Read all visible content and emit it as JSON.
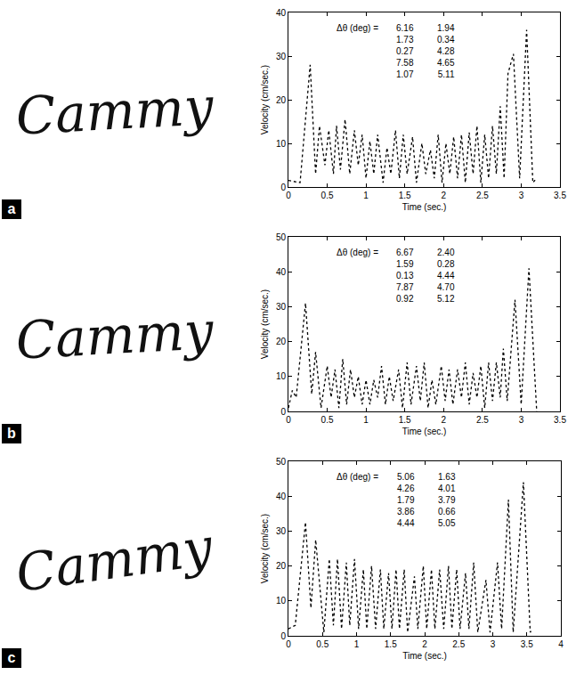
{
  "chart_data": [
    {
      "panel": "a",
      "signature": "Cammy",
      "type": "line",
      "color": "#000000",
      "line_style": "dot",
      "grid": false,
      "x_label": "Time (sec.)",
      "y_label": "Velocity (cm/sec.)",
      "xlim": [
        0,
        3.5
      ],
      "xticks": [
        0,
        0.5,
        1,
        1.5,
        2,
        2.5,
        3,
        3.5
      ],
      "ylim": [
        0,
        40
      ],
      "yticks": [
        0,
        10,
        20,
        30,
        40
      ],
      "annotation": {
        "label": "Δθ (deg) =",
        "rows": [
          [
            "6.16",
            "1.94"
          ],
          [
            "1.73",
            "0.34"
          ],
          [
            "0.27",
            "4.28"
          ],
          [
            "7.58",
            "4.65"
          ],
          [
            "1.07",
            "5.11"
          ]
        ]
      },
      "x": [
        0,
        0.15,
        0.28,
        0.35,
        0.4,
        0.47,
        0.52,
        0.58,
        0.62,
        0.67,
        0.73,
        0.79,
        0.85,
        0.9,
        0.95,
        1.0,
        1.05,
        1.1,
        1.15,
        1.22,
        1.27,
        1.32,
        1.38,
        1.43,
        1.48,
        1.53,
        1.6,
        1.65,
        1.72,
        1.77,
        1.83,
        1.88,
        1.93,
        1.98,
        2.03,
        2.08,
        2.13,
        2.18,
        2.23,
        2.28,
        2.33,
        2.38,
        2.43,
        2.48,
        2.53,
        2.58,
        2.63,
        2.68,
        2.73,
        2.78,
        2.83,
        2.9,
        2.98,
        3.07,
        3.15,
        3.2
      ],
      "values": [
        1.5,
        1,
        28,
        3,
        14,
        5,
        13,
        3,
        14,
        4,
        15.5,
        3,
        13,
        5,
        12,
        2,
        10.5,
        3,
        12,
        1,
        9,
        3,
        13,
        2,
        12,
        3,
        11.5,
        1,
        10,
        3,
        8.5,
        2,
        12,
        1,
        10,
        3,
        11.5,
        2,
        12,
        1,
        12.5,
        3,
        14,
        1,
        12,
        2,
        14,
        3,
        18.5,
        2,
        26,
        30.5,
        2,
        36,
        1,
        2
      ]
    },
    {
      "panel": "b",
      "signature": "Cammy",
      "type": "line",
      "color": "#000000",
      "line_style": "dot",
      "grid": false,
      "x_label": "Time (sec.)",
      "y_label": "Velocity (cm/sec.)",
      "xlim": [
        0,
        3.5
      ],
      "xticks": [
        0,
        0.5,
        1,
        1.5,
        2,
        2.5,
        3,
        3.5
      ],
      "ylim": [
        0,
        50
      ],
      "yticks": [
        0,
        10,
        20,
        30,
        40,
        50
      ],
      "annotation": {
        "label": "Δθ (deg) =",
        "rows": [
          [
            "6.67",
            "2.40"
          ],
          [
            "1.59",
            "0.28"
          ],
          [
            "0.13",
            "4.44"
          ],
          [
            "7.87",
            "4.70"
          ],
          [
            "0.92",
            "5.12"
          ]
        ]
      },
      "x": [
        0,
        0.05,
        0.1,
        0.22,
        0.3,
        0.35,
        0.42,
        0.5,
        0.55,
        0.6,
        0.65,
        0.7,
        0.75,
        0.8,
        0.85,
        0.9,
        0.95,
        1.0,
        1.05,
        1.1,
        1.15,
        1.2,
        1.25,
        1.3,
        1.35,
        1.42,
        1.47,
        1.53,
        1.58,
        1.65,
        1.7,
        1.75,
        1.8,
        1.85,
        1.9,
        1.97,
        2.02,
        2.07,
        2.12,
        2.18,
        2.23,
        2.28,
        2.33,
        2.38,
        2.43,
        2.48,
        2.53,
        2.58,
        2.63,
        2.68,
        2.73,
        2.77,
        2.82,
        2.92,
        3.0,
        3.1,
        3.2
      ],
      "values": [
        1,
        6,
        4,
        31,
        5,
        17,
        1,
        13,
        4,
        12,
        1,
        15,
        2,
        12,
        4,
        10,
        2,
        9,
        2,
        9,
        4,
        13,
        2,
        10,
        3,
        12,
        1,
        14,
        2,
        13,
        3,
        14,
        1,
        9,
        2,
        13,
        3,
        12,
        2,
        12,
        4,
        14,
        2,
        11,
        4,
        13,
        1,
        14,
        3,
        14,
        4,
        18,
        3,
        32,
        2,
        41,
        0
      ]
    },
    {
      "panel": "c",
      "signature": "Cammy",
      "type": "line",
      "color": "#000000",
      "line_style": "dot",
      "grid": false,
      "x_label": "Time (sec.)",
      "y_label": "Velocity (cm/sec.)",
      "xlim": [
        0,
        4
      ],
      "xticks": [
        0,
        0.5,
        1,
        1.5,
        2,
        2.5,
        3,
        3.5,
        4
      ],
      "ylim": [
        0,
        50
      ],
      "yticks": [
        0,
        10,
        20,
        30,
        40,
        50
      ],
      "annotation": {
        "label": "Δθ (deg) =",
        "rows": [
          [
            "5.06",
            "1.63"
          ],
          [
            "4.26",
            "4.01"
          ],
          [
            "1.79",
            "3.79"
          ],
          [
            "3.86",
            "0.66"
          ],
          [
            "4.44",
            "5.05"
          ]
        ]
      },
      "x": [
        0,
        0.1,
        0.25,
        0.33,
        0.4,
        0.52,
        0.6,
        0.66,
        0.72,
        0.78,
        0.85,
        0.9,
        0.97,
        1.03,
        1.1,
        1.15,
        1.22,
        1.28,
        1.35,
        1.4,
        1.47,
        1.52,
        1.58,
        1.63,
        1.7,
        1.75,
        1.85,
        1.9,
        1.98,
        2.03,
        2.1,
        2.15,
        2.22,
        2.28,
        2.35,
        2.4,
        2.47,
        2.52,
        2.6,
        2.65,
        2.72,
        2.78,
        2.9,
        2.96,
        3.07,
        3.13,
        3.23,
        3.3,
        3.45,
        3.55,
        3.58
      ],
      "values": [
        2,
        3,
        32.5,
        8,
        27.5,
        1,
        22,
        3,
        22,
        2,
        21,
        3,
        22,
        2,
        19,
        2,
        20,
        2,
        19,
        2,
        18,
        2,
        19,
        2,
        19,
        1,
        17,
        2,
        20,
        2,
        19,
        2,
        19,
        2,
        20,
        2,
        19,
        2,
        18,
        2,
        21,
        1,
        16,
        1,
        21,
        2,
        39,
        1,
        44,
        1,
        2
      ]
    }
  ]
}
